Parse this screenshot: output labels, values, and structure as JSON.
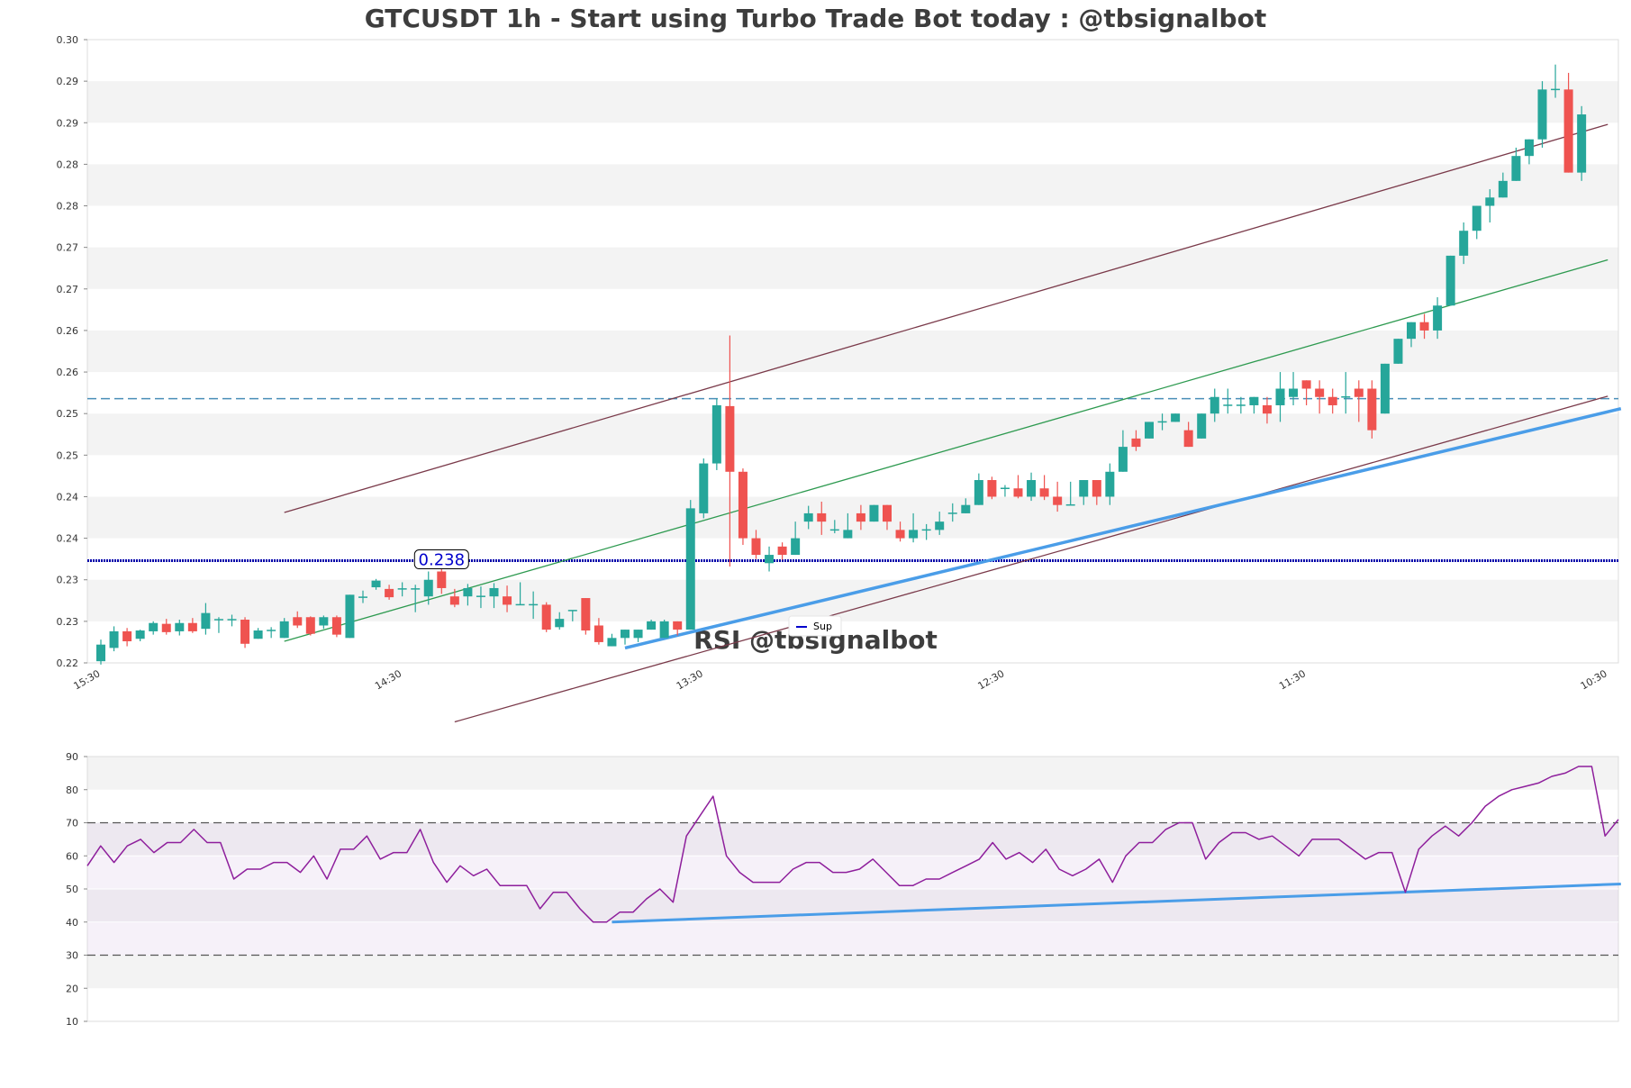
{
  "chart_data": [
    {
      "type": "candlestick",
      "title": "GTCUSDT 1h - Start using Turbo Trade Bot today : @tbsignalbot",
      "ytick_labels": [
        "0.30",
        "0.29",
        "0.29",
        "0.28",
        "0.28",
        "0.27",
        "0.27",
        "0.26",
        "0.26",
        "0.25",
        "0.25",
        "0.24",
        "0.24",
        "0.23",
        "0.23",
        "0.22"
      ],
      "ytick_values": [
        0.3,
        0.295,
        0.29,
        0.285,
        0.28,
        0.275,
        0.27,
        0.265,
        0.26,
        0.255,
        0.25,
        0.245,
        0.24,
        0.235,
        0.23,
        0.225
      ],
      "ylim": [
        0.225,
        0.3
      ],
      "xtick_labels": [
        {
          "label": "15:30",
          "index": 0
        },
        {
          "label": "14:30",
          "index": 23
        },
        {
          "label": "13:30",
          "index": 46
        },
        {
          "label": "12:30",
          "index": 69
        },
        {
          "label": "11:30",
          "index": 92
        },
        {
          "label": "10:30",
          "index": 115
        }
      ],
      "candles": [
        [
          0.2252,
          0.2272,
          0.2248,
          0.2278
        ],
        [
          0.2268,
          0.2288,
          0.2264,
          0.2294
        ],
        [
          0.2288,
          0.2276,
          0.227,
          0.2292
        ],
        [
          0.2279,
          0.2289,
          0.2276,
          0.229
        ],
        [
          0.2288,
          0.2298,
          0.2284,
          0.23
        ],
        [
          0.2297,
          0.2287,
          0.2284,
          0.2303
        ],
        [
          0.2288,
          0.2298,
          0.2283,
          0.2302
        ],
        [
          0.2298,
          0.2288,
          0.2286,
          0.2304
        ],
        [
          0.2291,
          0.231,
          0.2284,
          0.2322
        ],
        [
          0.2302,
          0.2302,
          0.2286,
          0.2305
        ],
        [
          0.2302,
          0.2302,
          0.2294,
          0.2308
        ],
        [
          0.2302,
          0.2273,
          0.2268,
          0.2305
        ],
        [
          0.2279,
          0.2289,
          0.2279,
          0.2292
        ],
        [
          0.2289,
          0.2289,
          0.228,
          0.2293
        ],
        [
          0.228,
          0.23,
          0.228,
          0.2304
        ],
        [
          0.2305,
          0.2295,
          0.2292,
          0.2312
        ],
        [
          0.2305,
          0.2285,
          0.2283,
          0.2306
        ],
        [
          0.2295,
          0.2305,
          0.2291,
          0.2307
        ],
        [
          0.2305,
          0.2284,
          0.2281,
          0.2307
        ],
        [
          0.228,
          0.2332,
          0.228,
          0.2332
        ],
        [
          0.2329,
          0.2329,
          0.2322,
          0.2337
        ],
        [
          0.2341,
          0.2349,
          0.2338,
          0.2351
        ],
        [
          0.2339,
          0.2329,
          0.2326,
          0.2344
        ],
        [
          0.2339,
          0.2339,
          0.233,
          0.2347
        ],
        [
          0.2339,
          0.2339,
          0.2311,
          0.2344
        ],
        [
          0.233,
          0.235,
          0.232,
          0.236
        ],
        [
          0.236,
          0.234,
          0.2333,
          0.2368
        ],
        [
          0.233,
          0.232,
          0.2317,
          0.2339
        ],
        [
          0.233,
          0.234,
          0.2319,
          0.2345
        ],
        [
          0.233,
          0.233,
          0.2316,
          0.2342
        ],
        [
          0.233,
          0.234,
          0.2316,
          0.2346
        ],
        [
          0.233,
          0.232,
          0.2311,
          0.2343
        ],
        [
          0.232,
          0.232,
          0.232,
          0.2347
        ],
        [
          0.232,
          0.232,
          0.2303,
          0.2336
        ],
        [
          0.232,
          0.229,
          0.2287,
          0.2323
        ],
        [
          0.2293,
          0.2303,
          0.229,
          0.2311
        ],
        [
          0.2313,
          0.2313,
          0.23,
          0.2313
        ],
        [
          0.2328,
          0.2289,
          0.2284,
          0.2328
        ],
        [
          0.2295,
          0.2275,
          0.2272,
          0.2304
        ],
        [
          0.227,
          0.228,
          0.227,
          0.2285
        ],
        [
          0.228,
          0.229,
          0.2272,
          0.229
        ],
        [
          0.228,
          0.229,
          0.2275,
          0.229
        ],
        [
          0.229,
          0.23,
          0.229,
          0.2302
        ],
        [
          0.228,
          0.23,
          0.228,
          0.2302
        ],
        [
          0.23,
          0.229,
          0.2283,
          0.23
        ],
        [
          0.229,
          0.2436,
          0.229,
          0.2446
        ],
        [
          0.243,
          0.249,
          0.2424,
          0.2496
        ],
        [
          0.249,
          0.256,
          0.2482,
          0.2568
        ],
        [
          0.2559,
          0.248,
          0.2366,
          0.2644
        ],
        [
          0.248,
          0.24,
          0.2392,
          0.2484
        ],
        [
          0.24,
          0.238,
          0.2375,
          0.241
        ],
        [
          0.237,
          0.238,
          0.236,
          0.239
        ],
        [
          0.239,
          0.238,
          0.2374,
          0.2395
        ],
        [
          0.238,
          0.24,
          0.238,
          0.242
        ],
        [
          0.242,
          0.243,
          0.2411,
          0.2439
        ],
        [
          0.243,
          0.242,
          0.2404,
          0.2444
        ],
        [
          0.241,
          0.241,
          0.2406,
          0.2422
        ],
        [
          0.24,
          0.241,
          0.24,
          0.243
        ],
        [
          0.243,
          0.242,
          0.241,
          0.244
        ],
        [
          0.242,
          0.244,
          0.242,
          0.244
        ],
        [
          0.244,
          0.242,
          0.241,
          0.244
        ],
        [
          0.241,
          0.24,
          0.2396,
          0.242
        ],
        [
          0.24,
          0.241,
          0.2395,
          0.243
        ],
        [
          0.241,
          0.241,
          0.2398,
          0.2417
        ],
        [
          0.241,
          0.242,
          0.2404,
          0.2432
        ],
        [
          0.243,
          0.243,
          0.242,
          0.2442
        ],
        [
          0.243,
          0.244,
          0.243,
          0.2448
        ],
        [
          0.244,
          0.247,
          0.244,
          0.2478
        ],
        [
          0.247,
          0.245,
          0.2447,
          0.2474
        ],
        [
          0.246,
          0.246,
          0.245,
          0.2464
        ],
        [
          0.246,
          0.245,
          0.2448,
          0.2476
        ],
        [
          0.245,
          0.247,
          0.2445,
          0.2479
        ],
        [
          0.246,
          0.245,
          0.2446,
          0.2476
        ],
        [
          0.245,
          0.244,
          0.2432,
          0.2468
        ],
        [
          0.244,
          0.244,
          0.244,
          0.2468
        ],
        [
          0.245,
          0.247,
          0.244,
          0.247
        ],
        [
          0.247,
          0.245,
          0.244,
          0.247
        ],
        [
          0.245,
          0.248,
          0.244,
          0.249
        ],
        [
          0.248,
          0.251,
          0.248,
          0.253
        ],
        [
          0.252,
          0.251,
          0.2505,
          0.253
        ],
        [
          0.252,
          0.254,
          0.252,
          0.254
        ],
        [
          0.254,
          0.254,
          0.253,
          0.255
        ],
        [
          0.254,
          0.255,
          0.254,
          0.255
        ],
        [
          0.253,
          0.251,
          0.251,
          0.254
        ],
        [
          0.252,
          0.255,
          0.252,
          0.255
        ],
        [
          0.255,
          0.257,
          0.254,
          0.258
        ],
        [
          0.256,
          0.256,
          0.255,
          0.258
        ],
        [
          0.256,
          0.256,
          0.255,
          0.257
        ],
        [
          0.256,
          0.257,
          0.255,
          0.257
        ],
        [
          0.256,
          0.255,
          0.2538,
          0.257
        ],
        [
          0.256,
          0.258,
          0.254,
          0.26
        ],
        [
          0.257,
          0.258,
          0.256,
          0.26
        ],
        [
          0.259,
          0.258,
          0.256,
          0.259
        ],
        [
          0.258,
          0.257,
          0.255,
          0.259
        ],
        [
          0.257,
          0.256,
          0.255,
          0.258
        ],
        [
          0.257,
          0.257,
          0.255,
          0.26
        ],
        [
          0.258,
          0.257,
          0.254,
          0.259
        ],
        [
          0.258,
          0.253,
          0.252,
          0.259
        ],
        [
          0.255,
          0.261,
          0.255,
          0.261
        ],
        [
          0.261,
          0.264,
          0.261,
          0.264
        ],
        [
          0.264,
          0.266,
          0.263,
          0.266
        ],
        [
          0.266,
          0.265,
          0.264,
          0.267
        ],
        [
          0.265,
          0.268,
          0.264,
          0.269
        ],
        [
          0.268,
          0.274,
          0.268,
          0.274
        ],
        [
          0.274,
          0.277,
          0.273,
          0.278
        ],
        [
          0.277,
          0.28,
          0.276,
          0.28
        ],
        [
          0.28,
          0.281,
          0.278,
          0.282
        ],
        [
          0.281,
          0.283,
          0.281,
          0.284
        ],
        [
          0.283,
          0.286,
          0.283,
          0.287
        ],
        [
          0.286,
          0.288,
          0.285,
          0.288
        ],
        [
          0.288,
          0.294,
          0.287,
          0.295
        ],
        [
          0.294,
          0.294,
          0.293,
          0.297
        ],
        [
          0.294,
          0.284,
          0.284,
          0.296
        ],
        [
          0.284,
          0.291,
          0.283,
          0.292
        ]
      ],
      "trend_lines": [
        {
          "name": "channel-upper",
          "color": "#7a3a4a",
          "start": [
            14,
            0.2431
          ],
          "end": [
            115,
            0.2898
          ]
        },
        {
          "name": "channel-middle",
          "color": "#2e9a50",
          "start": [
            14,
            0.2276
          ],
          "end": [
            115,
            0.2735
          ]
        },
        {
          "name": "channel-lower",
          "color": "#7a3a4a",
          "start": [
            27,
            0.2179
          ],
          "end": [
            115,
            0.2571
          ]
        },
        {
          "name": "support",
          "color": "#4a9de8",
          "start": [
            40,
            0.2268
          ],
          "end": [
            116,
            0.2556
          ]
        }
      ],
      "h_lines": [
        {
          "name": "support-level",
          "value": 0.2373,
          "color": "#0000aa",
          "style": "dotted"
        },
        {
          "name": "resistance-level",
          "value": 0.2568,
          "color": "#4a8fb8",
          "style": "dashed"
        }
      ],
      "level_label": {
        "text": "0.238",
        "index": 26
      },
      "legend": {
        "entries": [
          {
            "label": "Sup",
            "color": "#0000cc"
          }
        ],
        "placement": "bottom-center"
      },
      "colors": {
        "up": "#26a69a",
        "down": "#ef5350"
      }
    },
    {
      "type": "line",
      "title": "RSI @tbsignalbot",
      "ylim": [
        10,
        90
      ],
      "ytick_labels": [
        "90",
        "80",
        "70",
        "60",
        "50",
        "40",
        "30",
        "20",
        "10"
      ],
      "ytick_values": [
        90,
        80,
        70,
        60,
        50,
        40,
        30,
        20,
        10
      ],
      "overbought": 70,
      "oversold": 30,
      "series": [
        {
          "color": "#8e1f9c",
          "values": [
            57,
            63,
            58,
            63,
            65,
            61,
            64,
            64,
            68,
            64,
            64,
            53,
            56,
            56,
            58,
            58,
            55,
            60,
            53,
            62,
            62,
            66,
            59,
            61,
            61,
            68,
            58,
            52,
            57,
            54,
            56,
            51,
            51,
            51,
            44,
            49,
            49,
            44,
            40,
            40,
            43,
            43,
            47,
            50,
            46,
            66,
            72,
            78,
            60,
            55,
            52,
            52,
            52,
            56,
            58,
            58,
            55,
            55,
            56,
            59,
            55,
            51,
            51,
            53,
            53,
            55,
            57,
            59,
            64,
            59,
            61,
            58,
            62,
            56,
            54,
            56,
            59,
            52,
            60,
            64,
            64,
            68,
            70,
            70,
            59,
            64,
            67,
            67,
            65,
            66,
            63,
            60,
            65,
            65,
            65,
            62,
            59,
            61,
            61,
            49,
            62,
            66,
            69,
            66,
            70,
            75,
            78,
            80,
            81,
            82,
            84,
            85,
            87,
            87,
            66,
            71
          ]
        }
      ],
      "trend_lines": [
        {
          "name": "rsi-support",
          "color": "#4a9de8",
          "start": [
            39,
            40
          ],
          "end": [
            116,
            51.5
          ]
        }
      ]
    }
  ]
}
